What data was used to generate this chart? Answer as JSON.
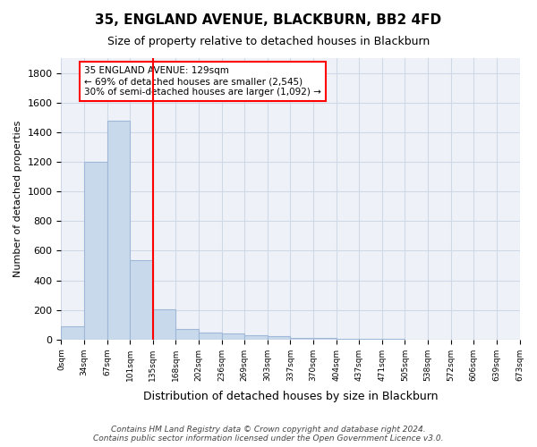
{
  "title1": "35, ENGLAND AVENUE, BLACKBURN, BB2 4FD",
  "title2": "Size of property relative to detached houses in Blackburn",
  "xlabel": "Distribution of detached houses by size in Blackburn",
  "ylabel": "Number of detached properties",
  "footer": "Contains HM Land Registry data © Crown copyright and database right 2024.\nContains public sector information licensed under the Open Government Licence v3.0.",
  "bin_labels": [
    "0sqm",
    "34sqm",
    "67sqm",
    "101sqm",
    "135sqm",
    "168sqm",
    "202sqm",
    "236sqm",
    "269sqm",
    "303sqm",
    "337sqm",
    "370sqm",
    "404sqm",
    "437sqm",
    "471sqm",
    "505sqm",
    "538sqm",
    "572sqm",
    "606sqm",
    "639sqm",
    "673sqm"
  ],
  "bar_values": [
    90,
    1200,
    1475,
    535,
    205,
    70,
    48,
    42,
    30,
    22,
    12,
    8,
    5,
    3,
    2,
    1,
    1,
    0,
    0,
    0
  ],
  "bar_color": "#c9d9ec",
  "bar_edge_color": "#a0b8d8",
  "grid_color": "#d0d8e8",
  "bg_color": "#eef2f8",
  "vline_x": 4,
  "vline_color": "red",
  "annotation_text": "35 ENGLAND AVENUE: 129sqm\n← 69% of detached houses are smaller (2,545)\n30% of semi-detached houses are larger (1,092) →",
  "annotation_box_color": "white",
  "annotation_box_edge": "red",
  "ylim": [
    0,
    1900
  ],
  "yticks": [
    0,
    200,
    400,
    600,
    800,
    1000,
    1200,
    1400,
    1600,
    1800
  ]
}
